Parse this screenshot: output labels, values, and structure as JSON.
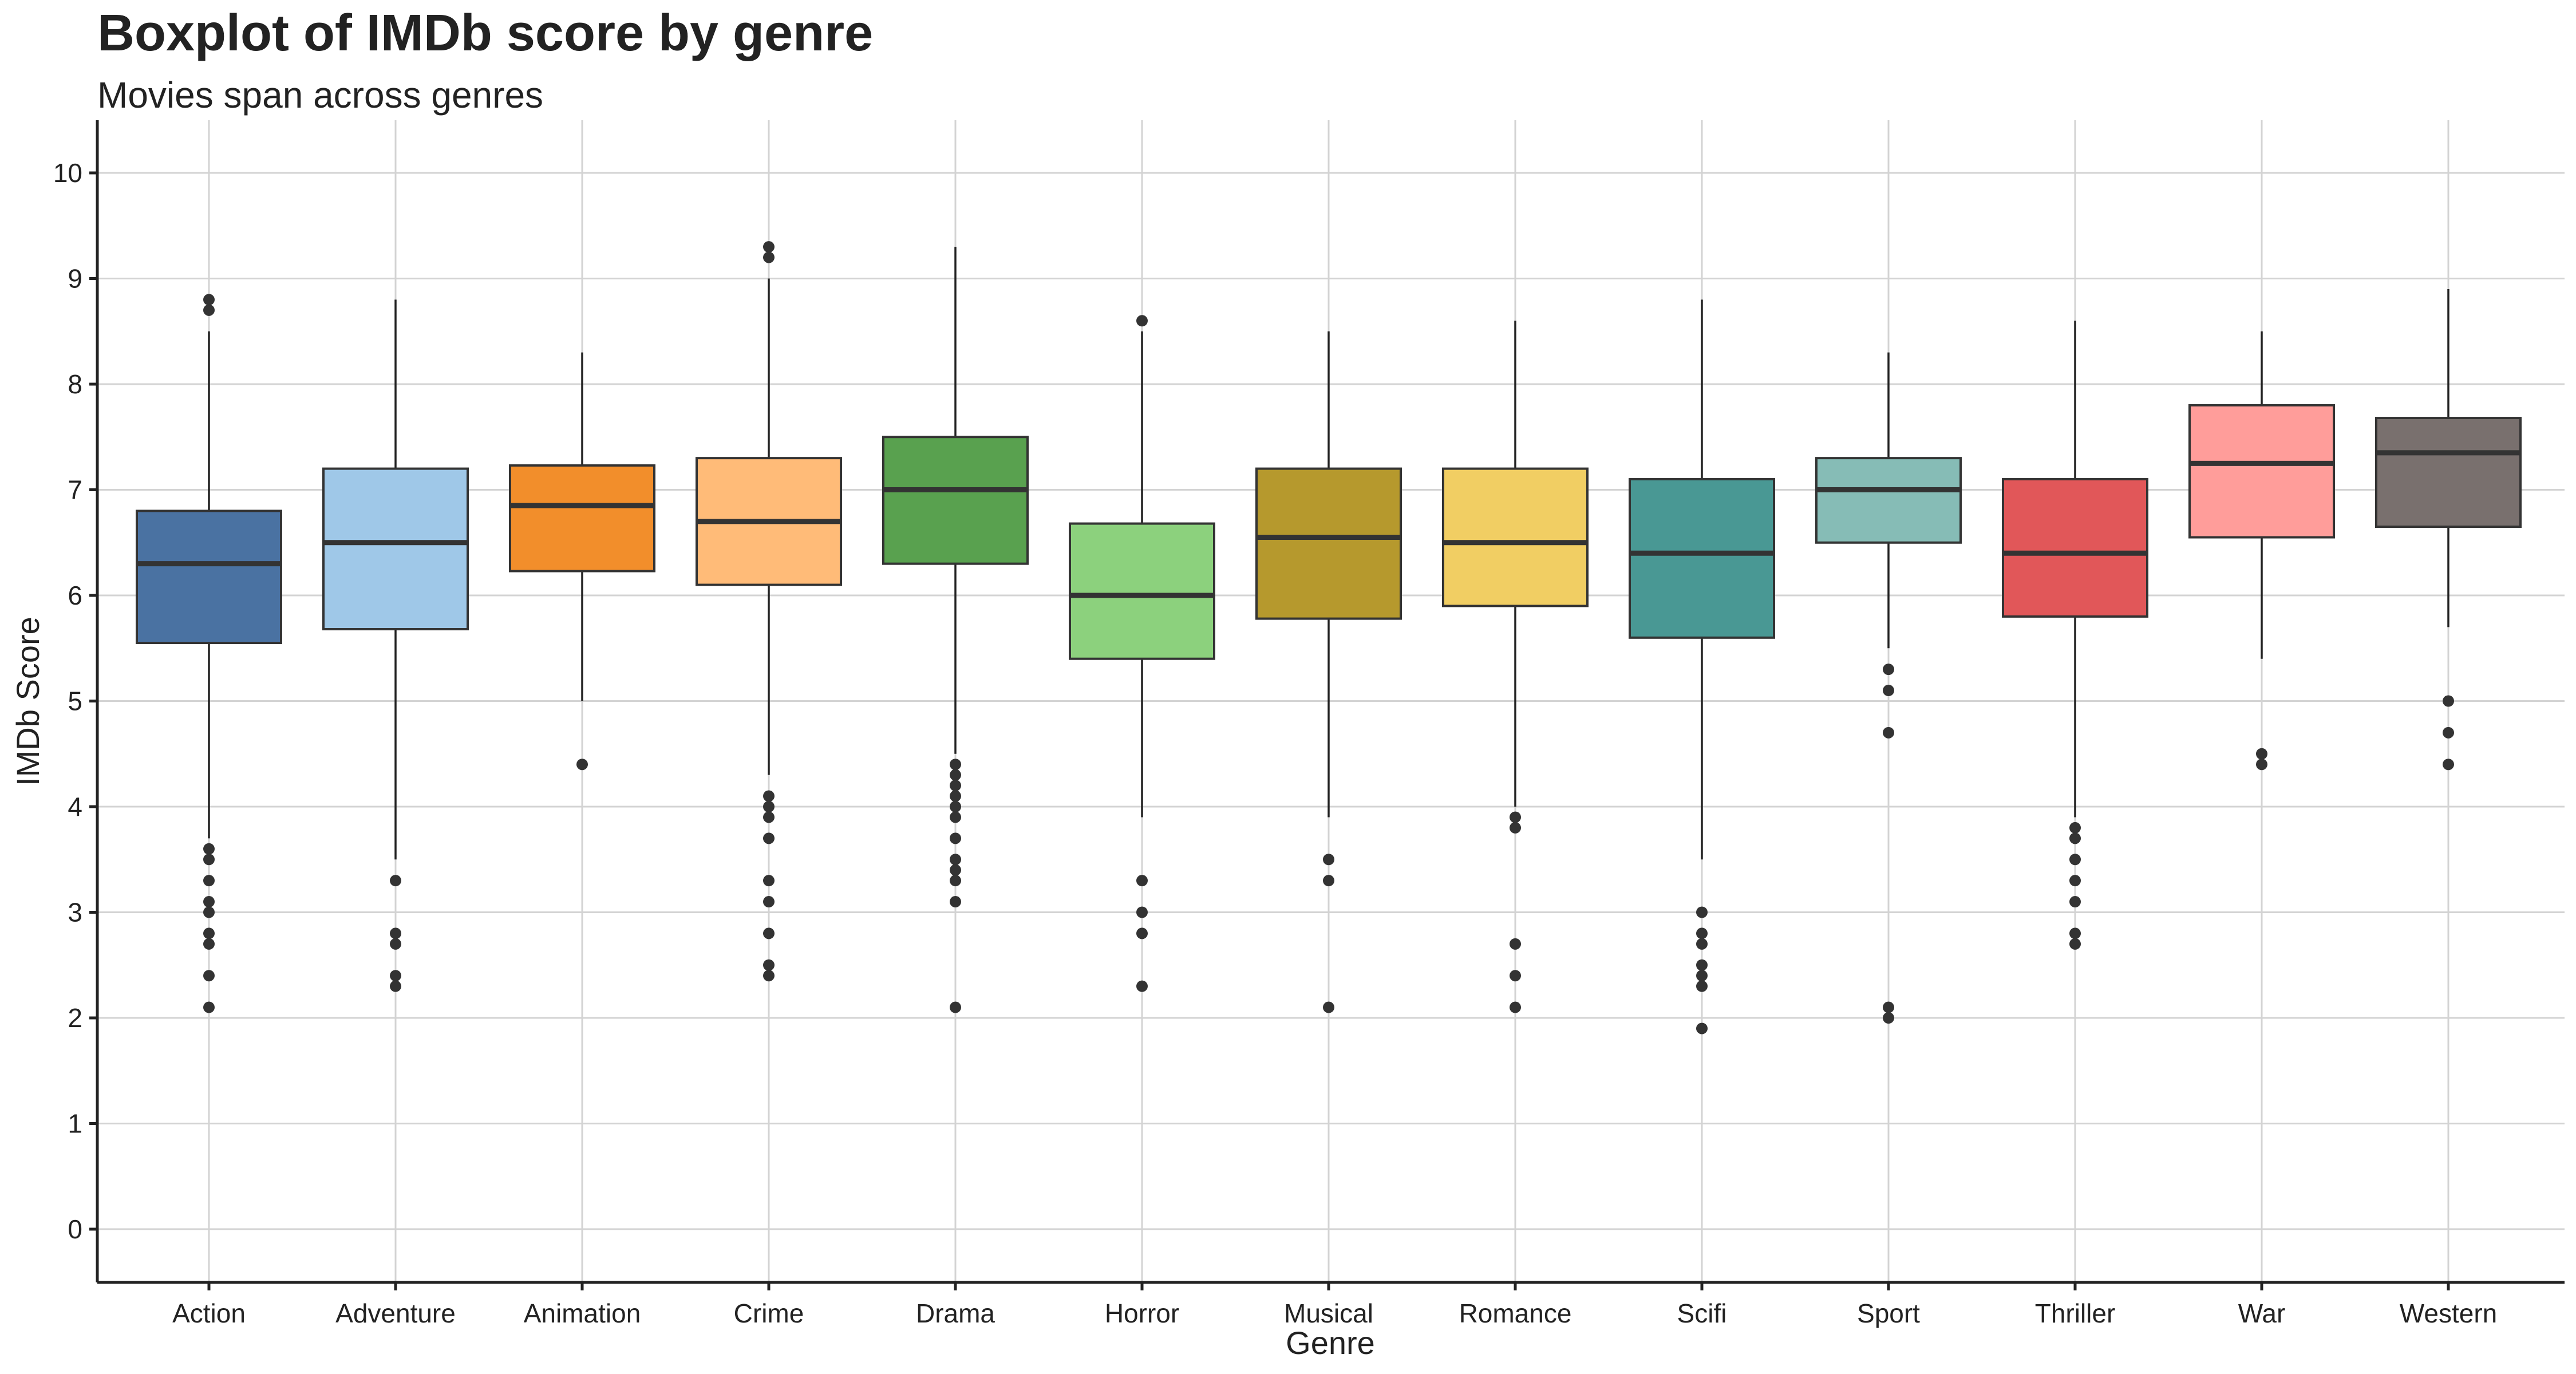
{
  "chart_data": {
    "type": "boxplot",
    "title": "Boxplot of IMDb score by genre",
    "subtitle": "Movies span across genres",
    "xlabel": "Genre",
    "ylabel": "IMDb Score",
    "ylim": [
      -0.5,
      10.5
    ],
    "yticks": [
      "0",
      "1",
      "2",
      "3",
      "4",
      "5",
      "6",
      "7",
      "8",
      "9",
      "10"
    ],
    "grid": true,
    "legend": "none",
    "categories": [
      "Action",
      "Adventure",
      "Animation",
      "Crime",
      "Drama",
      "Horror",
      "Musical",
      "Romance",
      "Scifi",
      "Sport",
      "Thriller",
      "War",
      "Western"
    ],
    "series": [
      {
        "category": "Action",
        "color": "#4a72a2",
        "whisker_low": 3.7,
        "q1": 5.55,
        "median": 6.3,
        "q3": 6.8,
        "whisker_high": 8.5,
        "outliers": [
          8.8,
          8.7,
          3.6,
          3.5,
          3.3,
          3.1,
          3.0,
          2.8,
          2.7,
          2.4,
          2.1
        ]
      },
      {
        "category": "Adventure",
        "color": "#9fc8e8",
        "whisker_low": 3.5,
        "q1": 5.68,
        "median": 6.5,
        "q3": 7.2,
        "whisker_high": 8.8,
        "outliers": [
          3.3,
          2.8,
          2.7,
          2.4,
          2.3
        ]
      },
      {
        "category": "Animation",
        "color": "#f28e2b",
        "whisker_low": 5.0,
        "q1": 6.23,
        "median": 6.85,
        "q3": 7.23,
        "whisker_high": 8.3,
        "outliers": [
          4.4
        ]
      },
      {
        "category": "Crime",
        "color": "#ffbb78",
        "whisker_low": 4.3,
        "q1": 6.1,
        "median": 6.7,
        "q3": 7.3,
        "whisker_high": 9.0,
        "outliers": [
          9.3,
          9.2,
          4.1,
          4.0,
          3.9,
          3.7,
          3.3,
          3.1,
          2.8,
          2.5,
          2.4
        ]
      },
      {
        "category": "Drama",
        "color": "#59a14f",
        "whisker_low": 4.5,
        "q1": 6.3,
        "median": 7.0,
        "q3": 7.5,
        "whisker_high": 9.3,
        "outliers": [
          4.4,
          4.3,
          4.2,
          4.1,
          4.0,
          3.9,
          3.7,
          3.5,
          3.4,
          3.3,
          3.1,
          2.1
        ]
      },
      {
        "category": "Horror",
        "color": "#8cd17d",
        "whisker_low": 3.9,
        "q1": 5.4,
        "median": 6.0,
        "q3": 6.68,
        "whisker_high": 8.5,
        "outliers": [
          8.6,
          3.3,
          3.0,
          2.8,
          2.3
        ]
      },
      {
        "category": "Musical",
        "color": "#b6992d",
        "whisker_low": 3.9,
        "q1": 5.78,
        "median": 6.55,
        "q3": 7.2,
        "whisker_high": 8.5,
        "outliers": [
          3.5,
          3.3,
          2.1
        ]
      },
      {
        "category": "Romance",
        "color": "#f1ce63",
        "whisker_low": 4.0,
        "q1": 5.9,
        "median": 6.5,
        "q3": 7.2,
        "whisker_high": 8.6,
        "outliers": [
          3.9,
          3.8,
          2.7,
          2.4,
          2.1
        ]
      },
      {
        "category": "Scifi",
        "color": "#499894",
        "whisker_low": 3.5,
        "q1": 5.6,
        "median": 6.4,
        "q3": 7.1,
        "whisker_high": 8.8,
        "outliers": [
          3.0,
          2.8,
          2.7,
          2.5,
          2.4,
          2.3,
          1.9
        ]
      },
      {
        "category": "Sport",
        "color": "#86bcb6",
        "whisker_low": 5.5,
        "q1": 6.5,
        "median": 7.0,
        "q3": 7.3,
        "whisker_high": 8.3,
        "outliers": [
          5.3,
          5.1,
          4.7,
          2.1,
          2.0
        ]
      },
      {
        "category": "Thriller",
        "color": "#e15759",
        "whisker_low": 3.9,
        "q1": 5.8,
        "median": 6.4,
        "q3": 7.1,
        "whisker_high": 8.6,
        "outliers": [
          3.8,
          3.7,
          3.5,
          3.3,
          3.1,
          2.8,
          2.7
        ]
      },
      {
        "category": "War",
        "color": "#ff9d9a",
        "whisker_low": 5.4,
        "q1": 6.55,
        "median": 7.25,
        "q3": 7.8,
        "whisker_high": 8.5,
        "outliers": [
          4.5,
          4.4
        ]
      },
      {
        "category": "Western",
        "color": "#79706e",
        "whisker_low": 5.7,
        "q1": 6.65,
        "median": 7.35,
        "q3": 7.68,
        "whisker_high": 8.9,
        "outliers": [
          5.0,
          4.7,
          4.4
        ]
      }
    ]
  }
}
